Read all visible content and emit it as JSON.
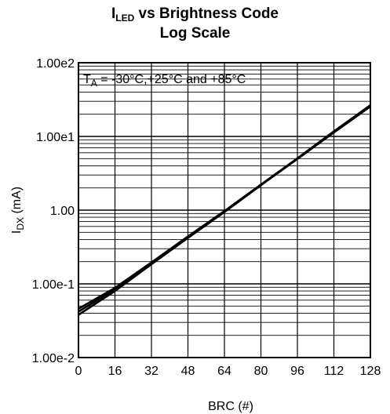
{
  "chart_data": {
    "type": "line",
    "title": {
      "line1_main": "I",
      "line1_sub": "LED",
      "line1_rest": " vs Brightness Code",
      "line2": "Log Scale"
    },
    "xlabel": "BRC (#)",
    "ylabel": {
      "main": "I",
      "sub": "DX",
      "rest": " (mA)"
    },
    "annotation": {
      "main": "T",
      "sub": "A",
      "rest": " = -30°C,+25°C and +85°C"
    },
    "xlim": [
      0,
      128
    ],
    "ylim": [
      0.01,
      100
    ],
    "yscale": "log",
    "x_ticks": [
      0,
      16,
      32,
      48,
      64,
      80,
      96,
      112,
      128
    ],
    "x_tick_labels": [
      "0",
      "16",
      "32",
      "48",
      "64",
      "80",
      "96",
      "112",
      "128"
    ],
    "y_ticks": [
      0.01,
      0.1,
      1,
      10,
      100
    ],
    "y_tick_labels": [
      "1.00e-2",
      "1.00e-1",
      "1.00",
      "1.00e1",
      "1.00e2"
    ],
    "grid": true,
    "series": [
      {
        "x": [
          0,
          16,
          32,
          48,
          64,
          80,
          96,
          112,
          128
        ],
        "y": [
          0.042,
          0.084,
          0.19,
          0.43,
          0.95,
          2.2,
          5.0,
          11.5,
          26
        ]
      },
      {
        "x": [
          0,
          16,
          32,
          48,
          64,
          80,
          96,
          112,
          128
        ],
        "y": [
          0.038,
          0.08,
          0.185,
          0.42,
          0.94,
          2.18,
          4.95,
          11.3,
          25.5
        ]
      },
      {
        "x": [
          0,
          16,
          32,
          48,
          64,
          80,
          96,
          112,
          128
        ],
        "y": [
          0.046,
          0.088,
          0.195,
          0.44,
          0.97,
          2.22,
          5.05,
          11.7,
          26.5
        ]
      }
    ],
    "line_color": "#000000",
    "grid_color": "#000000"
  }
}
